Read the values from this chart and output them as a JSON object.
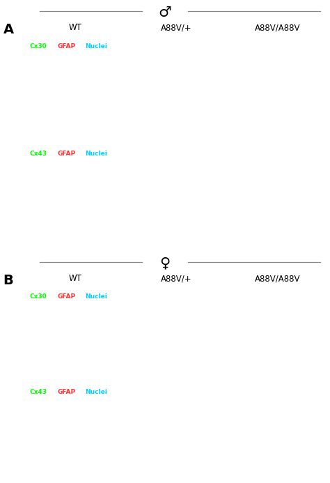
{
  "background_color": "#ffffff",
  "panel_bg": "#000000",
  "fig_width": 4.74,
  "fig_height": 6.93,
  "section_A_label": "A",
  "section_B_label": "B",
  "male_symbol": "♂",
  "female_symbol": "♀",
  "col_labels": [
    "WT",
    "A88V/+",
    "A88V/A88V"
  ],
  "label_colors": {
    "Cx30": "#00ff00",
    "Cx43": "#00ff00",
    "GFAP": "#ff3333",
    "Nuclei": "#00cfff"
  },
  "separator_color": "#888888",
  "text_color": "#000000",
  "star_color": "#ffffff",
  "inset_border_color": "#ffffff",
  "scalebar_color": "#ffffff",
  "label_fontsize": 6.5,
  "col_label_fontsize": 8.5,
  "section_label_fontsize": 14,
  "star_fontsize": 13
}
